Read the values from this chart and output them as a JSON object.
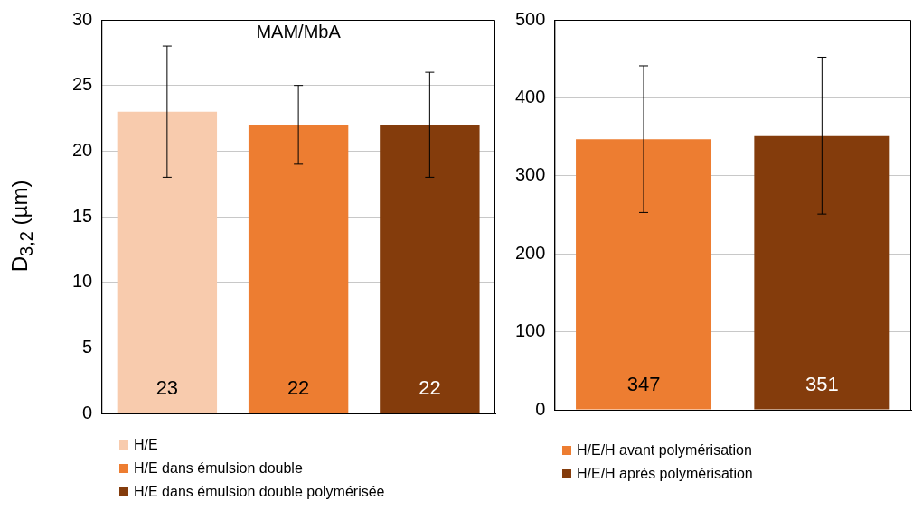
{
  "chart_data": [
    {
      "type": "bar",
      "title": "MAM/MbA",
      "ylabel": "D$_{3,2}$ (µm)",
      "categories": [
        null,
        null,
        null
      ],
      "series": [
        {
          "name": "H/E",
          "color": "#f8cbad",
          "values": [
            23,
            null,
            null
          ],
          "errors": [
            5,
            null,
            null
          ]
        },
        {
          "name": "H/E dans émulsion double",
          "color": "#ed7d31",
          "values": [
            null,
            22,
            null
          ],
          "errors": [
            null,
            3,
            null
          ]
        },
        {
          "name": "H/E dans émulsion double polymérisée",
          "color": "#843c0c",
          "values": [
            null,
            null,
            22
          ],
          "errors": [
            null,
            null,
            4
          ]
        }
      ],
      "ylim": [
        0,
        30
      ],
      "yticks": [
        0,
        5,
        10,
        15,
        20,
        25,
        30
      ],
      "grid": "y",
      "legend": "bottom",
      "data_labels": true
    },
    {
      "type": "bar",
      "categories": [
        null,
        null
      ],
      "series": [
        {
          "name": "H/E/H avant polymérisation",
          "color": "#ed7d31",
          "values": [
            347,
            null
          ],
          "errors": [
            [
              253,
              441
            ],
            null
          ]
        },
        {
          "name": "H/E/H après polymérisation",
          "color": "#843c0c",
          "values": [
            null,
            351
          ],
          "errors": [
            null,
            [
              251,
              452
            ]
          ]
        }
      ],
      "ylim": [
        0,
        500
      ],
      "yticks": [
        0,
        100,
        200,
        300,
        400,
        500
      ],
      "grid": "y",
      "legend": "bottom",
      "data_labels": true
    }
  ]
}
